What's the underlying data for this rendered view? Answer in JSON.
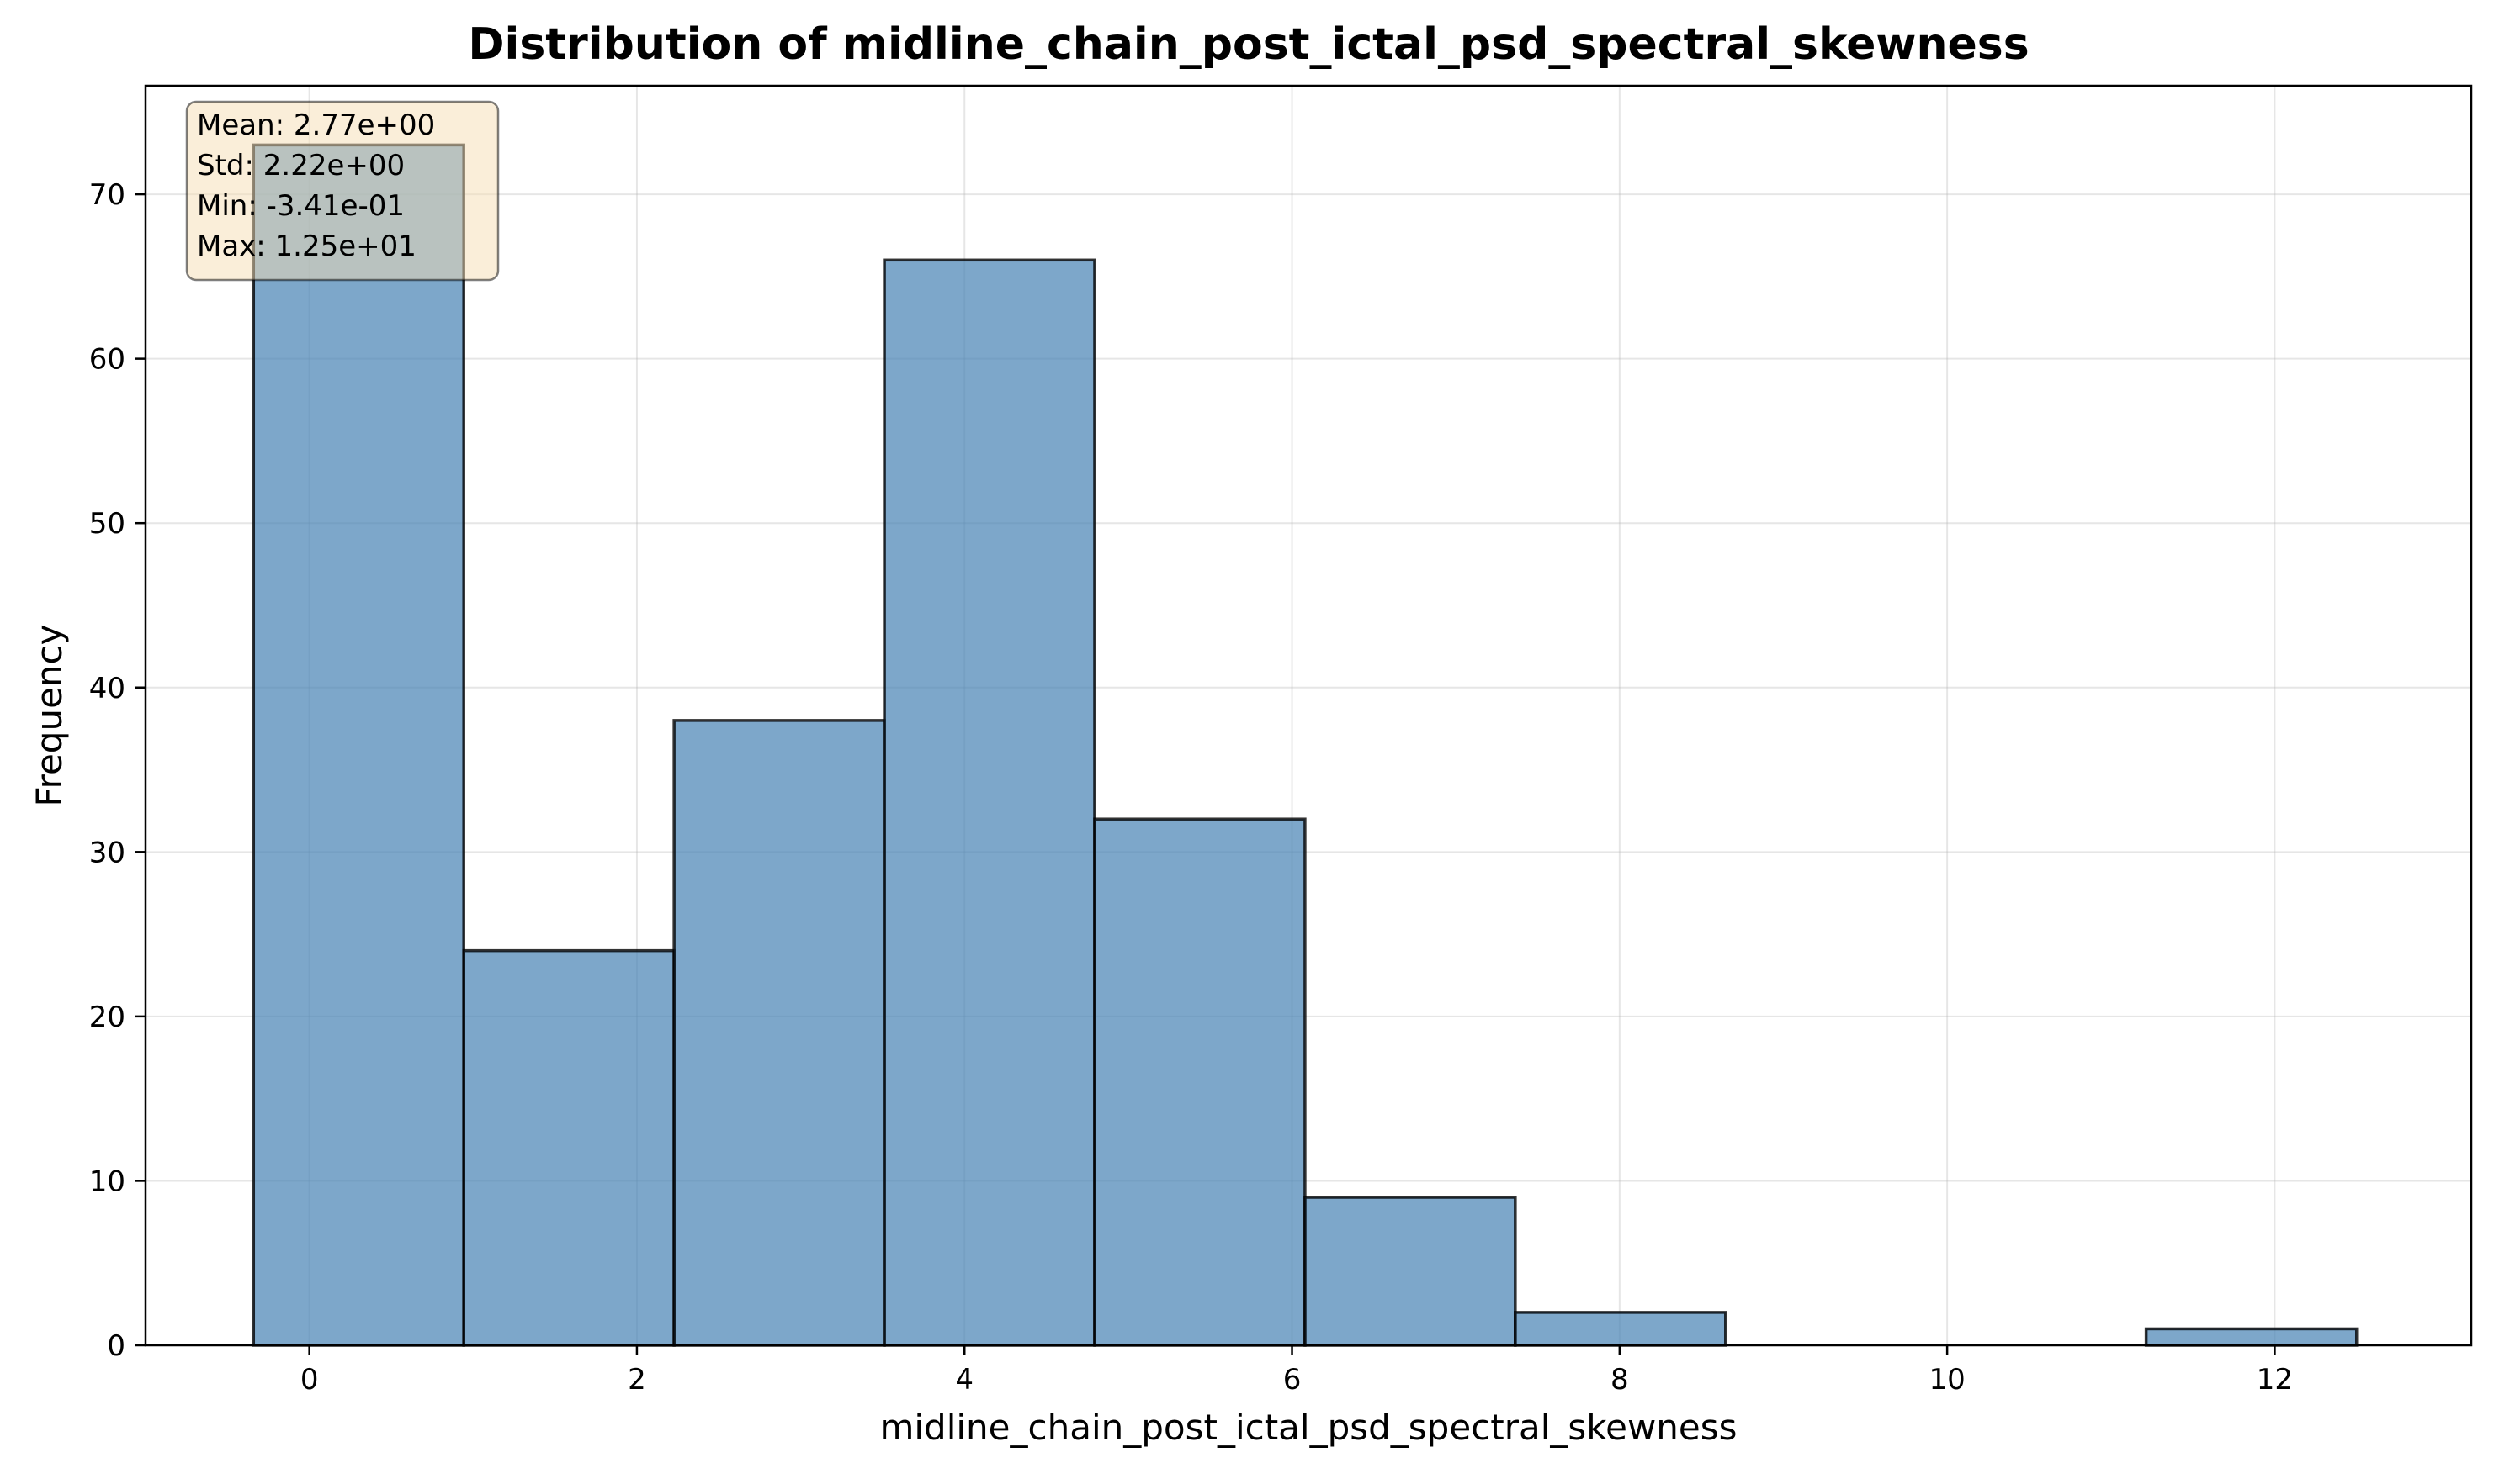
{
  "chart_data": {
    "type": "bar",
    "title": "Distribution of midline_chain_post_ictal_psd_spectral_skewness",
    "xlabel": "midline_chain_post_ictal_psd_spectral_skewness",
    "ylabel": "Frequency",
    "xlim": [
      -1.0,
      13.2
    ],
    "ylim": [
      0,
      76.6
    ],
    "xticks": [
      0,
      2,
      4,
      6,
      8,
      10,
      12
    ],
    "yticks": [
      0,
      10,
      20,
      30,
      40,
      50,
      60,
      70
    ],
    "grid": true,
    "bar_color": "#4682b4",
    "edge_color": "#000000",
    "bins": [
      {
        "x0": -0.341,
        "x1": 0.943,
        "count": 73
      },
      {
        "x0": 0.943,
        "x1": 2.227,
        "count": 24
      },
      {
        "x0": 2.227,
        "x1": 3.511,
        "count": 38
      },
      {
        "x0": 3.511,
        "x1": 4.795,
        "count": 66
      },
      {
        "x0": 4.795,
        "x1": 6.079,
        "count": 32
      },
      {
        "x0": 6.079,
        "x1": 7.363,
        "count": 9
      },
      {
        "x0": 7.363,
        "x1": 8.647,
        "count": 2
      },
      {
        "x0": 8.647,
        "x1": 9.931,
        "count": 0
      },
      {
        "x0": 9.931,
        "x1": 11.215,
        "count": 0
      },
      {
        "x0": 11.215,
        "x1": 12.5,
        "count": 1
      }
    ],
    "stats_box": {
      "lines": [
        "Mean: 2.77e+00",
        "Std: 2.22e+00",
        "Min: -3.41e-01",
        "Max: 1.25e+01"
      ],
      "fill_color": "#f5deb3",
      "placement": "top-left"
    }
  }
}
